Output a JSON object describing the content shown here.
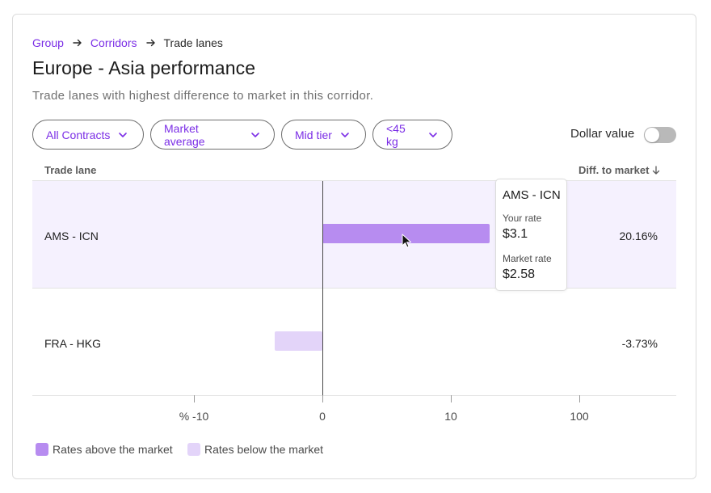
{
  "colors": {
    "accent": "#7b2ee6",
    "above_market": "#b78cf0",
    "below_market": "#e3d4f9",
    "row_highlight": "#f5f1fe",
    "toggle_off": "#b9b9b9"
  },
  "breadcrumb": {
    "items": [
      {
        "label": "Group",
        "link": true
      },
      {
        "label": "Corridors",
        "link": true
      },
      {
        "label": "Trade lanes",
        "link": false
      }
    ],
    "separator_icon": "arrow-right-icon"
  },
  "header": {
    "title": "Europe - Asia performance",
    "subtitle": "Trade lanes with highest difference to market in this corridor."
  },
  "filters": [
    {
      "label": "All Contracts",
      "icon": "chevron-down-icon"
    },
    {
      "label": "Market average",
      "icon": "chevron-down-icon"
    },
    {
      "label": "Mid tier",
      "icon": "chevron-down-icon"
    },
    {
      "label": "<45 kg",
      "icon": "chevron-down-icon"
    }
  ],
  "dollar_toggle": {
    "label": "Dollar value",
    "on": false
  },
  "table": {
    "columns": {
      "lane": "Trade lane",
      "diff": "Diff. to market",
      "sort_icon": "arrow-down-icon"
    },
    "rows": [
      {
        "lane": "AMS - ICN",
        "diff_label": "20.16%",
        "diff": 20.16,
        "direction": "above",
        "highlighted": true
      },
      {
        "lane": "FRA - HKG",
        "diff_label": "-3.73%",
        "diff": -3.73,
        "direction": "below",
        "highlighted": false
      }
    ]
  },
  "axis": {
    "unit_prefix": "%",
    "scale": "symmetric-log",
    "ticks": [
      {
        "value": -10,
        "label": "% -10"
      },
      {
        "value": 0,
        "label": "0"
      },
      {
        "value": 10,
        "label": "10"
      },
      {
        "value": 100,
        "label": "100"
      }
    ]
  },
  "tooltip": {
    "title": "AMS - ICN",
    "your_rate_label": "Your rate",
    "your_rate": "$3.1",
    "market_rate_label": "Market rate",
    "market_rate": "$2.58"
  },
  "legend": [
    {
      "label": "Rates above the market",
      "color": "#b78cf0"
    },
    {
      "label": "Rates below the market",
      "color": "#e3d4f9"
    }
  ]
}
